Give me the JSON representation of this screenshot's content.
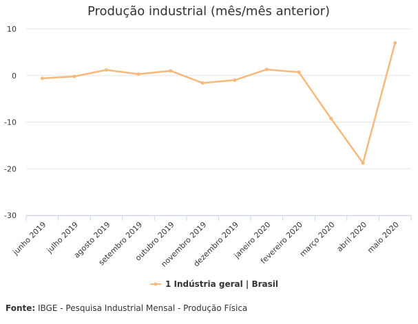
{
  "chart_data": {
    "type": "line",
    "title": "Produção industrial (mês/mês anterior)",
    "xlabel": "",
    "ylabel": "",
    "categories": [
      "junho 2019",
      "julho 2019",
      "agosto 2019",
      "setembro 2019",
      "outubro 2019",
      "novembro 2019",
      "dezembro 2019",
      "janeiro 2020",
      "fevereiro 2020",
      "março 2020",
      "abril 2020",
      "maio 2020"
    ],
    "series": [
      {
        "name": "1 Indústria geral | Brasil",
        "values": [
          -0.6,
          -0.2,
          1.2,
          0.3,
          1.0,
          -1.6,
          -1.0,
          1.3,
          0.7,
          -9.2,
          -18.8,
          7.0
        ],
        "color": "#f7b97a"
      }
    ],
    "ylim": [
      -30,
      10
    ],
    "yticks": [
      10,
      0,
      -10,
      -20,
      -30
    ],
    "grid": true,
    "legend": "bottom-center"
  },
  "footer": {
    "source_label": "Fonte:",
    "source_text": " IBGE - Pesquisa Industrial Mensal - Produção Física"
  }
}
